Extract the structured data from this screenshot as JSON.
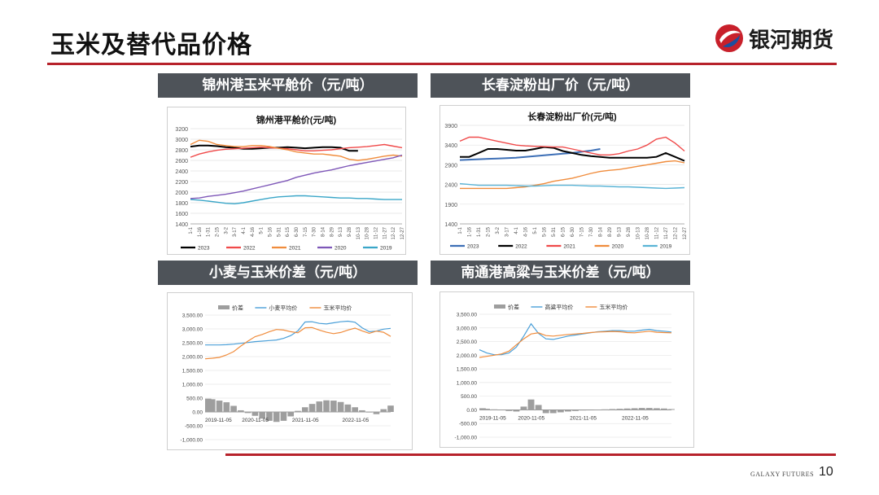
{
  "page": {
    "title": "玉米及替代品价格",
    "brand": "银河期货",
    "footer_brand": "GALAXY FUTURES",
    "page_number": "10",
    "accent_color": "#b7222b",
    "header_color": "#4e5359"
  },
  "panels": [
    {
      "header": "锦州港玉米平舱价（元/吨）"
    },
    {
      "header": "长春淀粉出厂价（元/吨）"
    },
    {
      "header": "小麦与玉米价差（元/吨）"
    },
    {
      "header": "南通港高粱与玉米价差（元/吨）"
    }
  ],
  "chart_data": [
    {
      "type": "line",
      "title": "锦州港平舱价(元/吨)",
      "ylim": [
        1400,
        3200
      ],
      "yticks": [
        "3200",
        "3000",
        "2800",
        "2600",
        "2400",
        "2200",
        "2000",
        "1800",
        "1600",
        "1400"
      ],
      "categories": [
        "1-1",
        "1-16",
        "1-31",
        "2-15",
        "3-2",
        "3-17",
        "4-1",
        "4-16",
        "5-1",
        "5-16",
        "5-31",
        "6-15",
        "6-30",
        "7-15",
        "7-30",
        "8-14",
        "8-29",
        "9-13",
        "9-28",
        "10-13",
        "10-28",
        "11-12",
        "11-27",
        "12-12",
        "12-27"
      ],
      "grid": true,
      "legend": "bottom",
      "series": [
        {
          "name": "2023",
          "color": "#000000",
          "values": [
            2860,
            2880,
            2880,
            2870,
            2850,
            2840,
            2820,
            2820,
            2830,
            2840,
            2840,
            2850,
            2840,
            2830,
            2840,
            2850,
            2850,
            2840,
            2780,
            2780,
            null,
            null,
            null,
            null,
            null
          ]
        },
        {
          "name": "2022",
          "color": "#f04a4a",
          "values": [
            2660,
            2720,
            2760,
            2790,
            2810,
            2820,
            2830,
            2840,
            2850,
            2840,
            2830,
            2820,
            2800,
            2780,
            2780,
            2790,
            2800,
            2820,
            2840,
            2850,
            2860,
            2880,
            2900,
            2870,
            2840
          ]
        },
        {
          "name": "2021",
          "color": "#f08c3c",
          "values": [
            2900,
            2980,
            2960,
            2900,
            2880,
            2860,
            2860,
            2880,
            2880,
            2860,
            2830,
            2800,
            2760,
            2740,
            2720,
            2720,
            2700,
            2680,
            2620,
            2600,
            2620,
            2650,
            2680,
            2700,
            2680
          ]
        },
        {
          "name": "2020",
          "color": "#7e57b8",
          "values": [
            1880,
            1890,
            1920,
            1940,
            1960,
            1990,
            2020,
            2060,
            2100,
            2140,
            2180,
            2220,
            2280,
            2320,
            2360,
            2390,
            2420,
            2460,
            2500,
            2530,
            2560,
            2590,
            2620,
            2650,
            2700
          ]
        },
        {
          "name": "2019",
          "color": "#3aa6c8",
          "values": [
            1860,
            1850,
            1830,
            1810,
            1790,
            1780,
            1800,
            1830,
            1860,
            1890,
            1910,
            1920,
            1930,
            1930,
            1920,
            1910,
            1900,
            1890,
            1890,
            1880,
            1880,
            1870,
            1860,
            1860,
            1860
          ]
        }
      ]
    },
    {
      "type": "line",
      "title": "长春淀粉出厂价(元/吨)",
      "ylim": [
        1400,
        3900
      ],
      "yticks": [
        "3900",
        "3400",
        "2900",
        "2400",
        "1900",
        "1400"
      ],
      "categories": [
        "1-1",
        "1-16",
        "1-31",
        "2-15",
        "3-2",
        "3-17",
        "4-1",
        "4-16",
        "5-1",
        "5-16",
        "5-31",
        "6-15",
        "6-30",
        "7-15",
        "7-30",
        "8-14",
        "8-29",
        "9-13",
        "9-28",
        "10-13",
        "10-28",
        "11-12",
        "11-27",
        "12-12",
        "12-27"
      ],
      "grid": true,
      "legend": "bottom",
      "series": [
        {
          "name": "2023",
          "color": "#3d6fb6",
          "values": [
            3020,
            3030,
            3040,
            3050,
            3060,
            3070,
            3080,
            3100,
            3120,
            3140,
            3160,
            3180,
            3200,
            3230,
            3260,
            3300,
            null,
            null,
            null,
            null,
            null,
            null,
            null,
            null,
            null
          ]
        },
        {
          "name": "2022",
          "color": "#000000",
          "values": [
            3100,
            3100,
            3200,
            3300,
            3300,
            3280,
            3260,
            3260,
            3300,
            3350,
            3330,
            3250,
            3200,
            3150,
            3120,
            3100,
            3080,
            3080,
            3080,
            3080,
            3080,
            3100,
            3200,
            3100,
            3000
          ]
        },
        {
          "name": "2021",
          "color": "#f04a4a",
          "values": [
            3500,
            3600,
            3600,
            3550,
            3500,
            3450,
            3400,
            3380,
            3370,
            3360,
            3350,
            3350,
            3300,
            3250,
            3200,
            3150,
            3150,
            3180,
            3250,
            3300,
            3400,
            3550,
            3600,
            3450,
            3250
          ]
        },
        {
          "name": "2020",
          "color": "#f08c3c",
          "values": [
            2300,
            2300,
            2300,
            2300,
            2300,
            2300,
            2320,
            2340,
            2380,
            2420,
            2480,
            2520,
            2560,
            2620,
            2680,
            2730,
            2760,
            2780,
            2820,
            2860,
            2900,
            2940,
            2980,
            3000,
            2950
          ]
        },
        {
          "name": "2019",
          "color": "#5ab4d6",
          "values": [
            2420,
            2400,
            2380,
            2380,
            2380,
            2380,
            2370,
            2360,
            2360,
            2370,
            2380,
            2380,
            2380,
            2370,
            2360,
            2360,
            2350,
            2340,
            2340,
            2330,
            2320,
            2310,
            2300,
            2310,
            2320
          ]
        }
      ]
    },
    {
      "type": "line",
      "title": "",
      "ylim": [
        -1000,
        3500
      ],
      "yticks": [
        "3,500.00",
        "3,000.00",
        "2,500.00",
        "2,000.00",
        "1,500.00",
        "1,000.00",
        "500.00",
        "0.00",
        "-500.00",
        "-1,000.00"
      ],
      "xticks": [
        "2019-11-05",
        "2020-11-05",
        "2021-11-05",
        "2022-11-05"
      ],
      "grid": true,
      "legend": "top",
      "series": [
        {
          "name": "价差",
          "color": "#9e9e9e",
          "type": "bar",
          "values": [
            480,
            460,
            410,
            350,
            220,
            60,
            -40,
            -140,
            -240,
            -320,
            -360,
            -320,
            -160,
            40,
            170,
            290,
            380,
            420,
            410,
            360,
            270,
            170,
            60,
            -20,
            -80,
            100,
            230
          ]
        },
        {
          "name": "小麦平均价",
          "color": "#4a9fd8",
          "values": [
            2420,
            2420,
            2420,
            2430,
            2450,
            2480,
            2510,
            2540,
            2560,
            2580,
            2600,
            2660,
            2760,
            2930,
            3250,
            3260,
            3200,
            3180,
            3220,
            3260,
            3280,
            3240,
            3040,
            2900,
            2920,
            2990,
            3020
          ]
        },
        {
          "name": "玉米平均价",
          "color": "#f08c3c",
          "values": [
            1920,
            1940,
            1970,
            2060,
            2180,
            2380,
            2560,
            2720,
            2800,
            2900,
            2980,
            2960,
            2900,
            2860,
            3040,
            3050,
            2960,
            2880,
            2830,
            2870,
            2960,
            3030,
            2930,
            2840,
            2920,
            2880,
            2730
          ]
        }
      ]
    },
    {
      "type": "line",
      "title": "",
      "ylim": [
        -1000,
        3500
      ],
      "yticks": [
        "3,500.00",
        "3,000.00",
        "2,500.00",
        "2,000.00",
        "1,500.00",
        "1,000.00",
        "500.00",
        "0.00",
        "-500.00",
        "-1,000.00"
      ],
      "xticks": [
        "2019-11-05",
        "2020-11-05",
        "2021-11-05",
        "2022-11-05"
      ],
      "grid": true,
      "legend": "top",
      "series": [
        {
          "name": "价差",
          "color": "#9e9e9e",
          "type": "bar",
          "values": [
            60,
            40,
            20,
            0,
            -40,
            -60,
            120,
            380,
            180,
            -120,
            -120,
            -90,
            -60,
            -40,
            -20,
            -10,
            10,
            20,
            30,
            40,
            50,
            60,
            70,
            70,
            60,
            50,
            30
          ]
        },
        {
          "name": "高粱平均价",
          "color": "#4a9fd8",
          "values": [
            2200,
            2080,
            2020,
            2020,
            2080,
            2300,
            2700,
            3150,
            2800,
            2600,
            2580,
            2640,
            2700,
            2740,
            2780,
            2820,
            2860,
            2880,
            2900,
            2900,
            2880,
            2880,
            2920,
            2950,
            2900,
            2880,
            2850
          ]
        },
        {
          "name": "玉米平均价",
          "color": "#f08c3c",
          "values": [
            1920,
            1960,
            2000,
            2050,
            2150,
            2380,
            2600,
            2780,
            2820,
            2720,
            2700,
            2730,
            2760,
            2780,
            2800,
            2830,
            2850,
            2860,
            2870,
            2860,
            2830,
            2820,
            2850,
            2880,
            2840,
            2830,
            2820
          ]
        }
      ]
    }
  ]
}
